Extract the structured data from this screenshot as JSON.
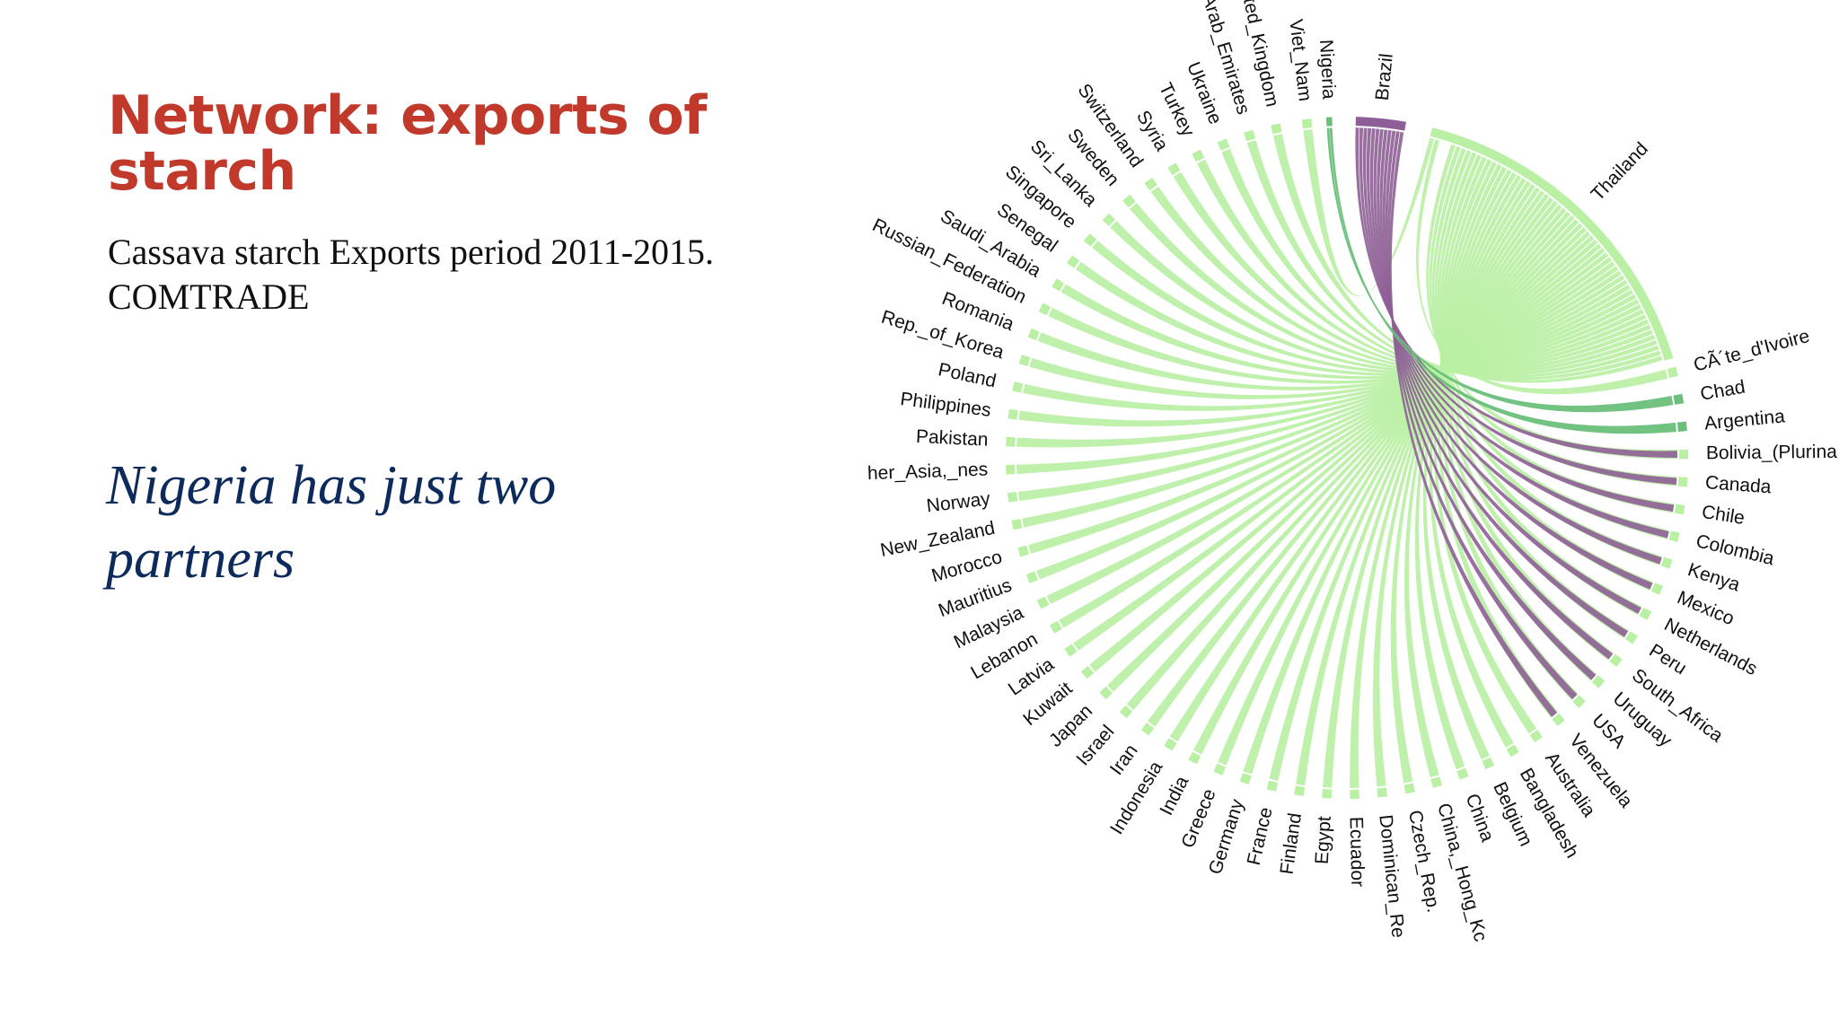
{
  "slide": {
    "title": "Network: exports of starch",
    "subtitle_line1": "Cassava starch Exports period 2011-2015.",
    "subtitle_line2": "COMTRADE",
    "note_line1": "Nigeria has just two",
    "note_line2": "partners"
  },
  "colors": {
    "thailand": "#b9f0a3",
    "brazil": "#8e5f96",
    "nigeria": "#6abf7b",
    "title": "#c0392b",
    "note": "#0d2a5c"
  },
  "chart_data": {
    "type": "chord",
    "exporters": [
      "Thailand",
      "Brazil",
      "Nigeria"
    ],
    "countries": [
      "Viet_Nam",
      "Nigeria",
      "Brazil",
      "Thailand",
      "CÃ´te_d'Ivoire",
      "Chad",
      "Argentina",
      "Bolivia_(Plurina",
      "Canada",
      "Chile",
      "Colombia",
      "Kenya",
      "Mexico",
      "Netherlands",
      "Peru",
      "South_Africa",
      "Uruguay",
      "USA",
      "Venezuela",
      "Australia",
      "Bangladesh",
      "Belgium",
      "China",
      "China,_Hong_Kc",
      "Czech_Rep.",
      "Dominican_Re",
      "Ecuador",
      "Egypt",
      "Finland",
      "France",
      "Germany",
      "Greece",
      "India",
      "Indonesia",
      "Iran",
      "Israel",
      "Japan",
      "Kuwait",
      "Latvia",
      "Lebanon",
      "Malaysia",
      "Mauritius",
      "Morocco",
      "New_Zealand",
      "Norway",
      "her_Asia,_nes",
      "Pakistan",
      "Philippines",
      "Poland",
      "Rep._of_Korea",
      "Romania",
      "Russian_Federation",
      "Saudi_Arabia",
      "Senegal",
      "Singapore",
      "Sri_Lanka",
      "Sweden",
      "Switzerland",
      "Syria",
      "Turkey",
      "Ukraine",
      "_Arab_Emirates",
      "nited_Kingdom"
    ],
    "flows": {
      "Nigeria": [
        "Chad",
        "Argentina"
      ],
      "Brazil": [
        "Bolivia_(Plurina",
        "Canada",
        "Chile",
        "Colombia",
        "Kenya",
        "Mexico",
        "Netherlands",
        "Peru",
        "South_Africa",
        "Uruguay",
        "USA",
        "Venezuela"
      ]
    }
  }
}
